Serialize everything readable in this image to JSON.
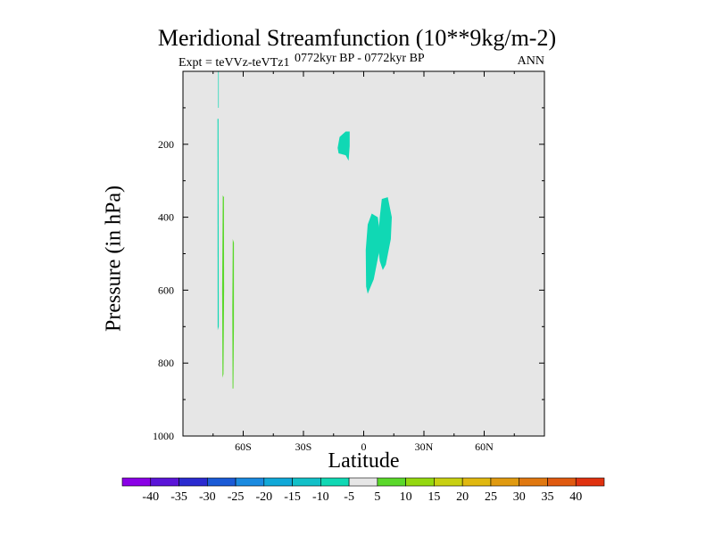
{
  "chart_data": {
    "type": "contour",
    "title": "Meridional Streamfunction (10**9kg/m-2)",
    "subtitle_left": "Expt = teVVz-teVTz1",
    "subtitle_center": "0772kyr BP - 0772kyr BP",
    "subtitle_right": "ANN",
    "xlabel": "Latitude",
    "ylabel": "Pressure (in hPa)",
    "xlim": [
      -90,
      90
    ],
    "ylim": [
      1000,
      0
    ],
    "xticks": [
      {
        "value": -60,
        "label": "60S"
      },
      {
        "value": -30,
        "label": "30S"
      },
      {
        "value": 0,
        "label": "0"
      },
      {
        "value": 30,
        "label": "30N"
      },
      {
        "value": 60,
        "label": "60N"
      }
    ],
    "yticks": [
      {
        "value": 200,
        "label": "200"
      },
      {
        "value": 400,
        "label": "400"
      },
      {
        "value": 600,
        "label": "600"
      },
      {
        "value": 800,
        "label": "800"
      },
      {
        "value": 1000,
        "label": "1000"
      }
    ],
    "background": "#e6e6e6",
    "colorbar": {
      "levels": [
        "-40",
        "-35",
        "-30",
        "-25",
        "-20",
        "-15",
        "-10",
        "-5",
        "5",
        "10",
        "15",
        "20",
        "25",
        "30",
        "35",
        "40"
      ],
      "colors": [
        "#8a00e6",
        "#5a14d8",
        "#2a2ad0",
        "#1a5ad6",
        "#1a8ae0",
        "#10a8d8",
        "#12c0c8",
        "#10d8b4",
        "#e6e6e6",
        "#5ad82a",
        "#94d810",
        "#c8d012",
        "#e0b810",
        "#e09a10",
        "#e07810",
        "#e05a10",
        "#e03210"
      ]
    },
    "regions": [
      {
        "name": "upper-thin-strip",
        "color": "#10d8b4",
        "points": [
          [
            -72.5,
            0
          ],
          [
            -72.2,
            0
          ],
          [
            -72.2,
            100
          ],
          [
            -72.5,
            100
          ]
        ]
      },
      {
        "name": "left-thin-strip",
        "color": "#10d8b4",
        "points": [
          [
            -72.8,
            130
          ],
          [
            -72.3,
            130
          ],
          [
            -72.2,
            700
          ],
          [
            -72.7,
            710
          ]
        ]
      },
      {
        "name": "near-surface-green-a",
        "color": "#5ad82a",
        "points": [
          [
            -70.2,
            340
          ],
          [
            -69.6,
            345
          ],
          [
            -69.5,
            600
          ],
          [
            -69.8,
            830
          ],
          [
            -70.3,
            840
          ],
          [
            -70.5,
            600
          ]
        ]
      },
      {
        "name": "near-surface-green-b",
        "color": "#5ad82a",
        "points": [
          [
            -65.2,
            460
          ],
          [
            -64.6,
            470
          ],
          [
            -64.6,
            700
          ],
          [
            -64.9,
            870
          ],
          [
            -65.3,
            870
          ],
          [
            -65.4,
            650
          ]
        ]
      },
      {
        "name": "upper-tropical-cell",
        "color": "#10d8b4",
        "points": [
          [
            -13,
            210
          ],
          [
            -12,
            180
          ],
          [
            -9,
            165
          ],
          [
            -7,
            165
          ],
          [
            -7,
            205
          ],
          [
            -7.5,
            245
          ],
          [
            -9,
            230
          ],
          [
            -12.5,
            225
          ]
        ]
      },
      {
        "name": "mid-tropical-cell-left",
        "color": "#10d8b4",
        "points": [
          [
            1,
            490
          ],
          [
            2,
            420
          ],
          [
            4,
            390
          ],
          [
            7,
            400
          ],
          [
            8,
            440
          ],
          [
            7.5,
            500
          ],
          [
            5,
            570
          ],
          [
            2,
            610
          ],
          [
            1.2,
            590
          ]
        ]
      },
      {
        "name": "mid-tropical-cell-right",
        "color": "#10d8b4",
        "points": [
          [
            7,
            470
          ],
          [
            8,
            400
          ],
          [
            9,
            350
          ],
          [
            12,
            345
          ],
          [
            14,
            400
          ],
          [
            13.5,
            460
          ],
          [
            11,
            530
          ],
          [
            9.5,
            545
          ],
          [
            8,
            520
          ]
        ]
      }
    ]
  }
}
